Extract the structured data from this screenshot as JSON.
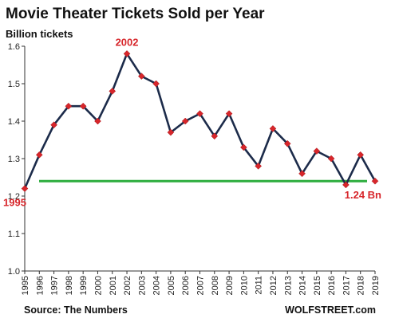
{
  "chart_data": {
    "type": "line",
    "title": "Movie Theater Tickets Sold per Year",
    "subtitle": "Billion tickets",
    "xlabel": "",
    "ylabel": "",
    "x": [
      "1995",
      "1996",
      "1997",
      "1998",
      "1999",
      "2000",
      "2001",
      "2002",
      "2003",
      "2004",
      "2005",
      "2006",
      "2007",
      "2008",
      "2009",
      "2010",
      "2011",
      "2012",
      "2013",
      "2014",
      "2015",
      "2016",
      "2017",
      "2018",
      "2019"
    ],
    "series": [
      {
        "values": [
          1.22,
          1.31,
          1.39,
          1.44,
          1.44,
          1.4,
          1.48,
          1.58,
          1.52,
          1.5,
          1.37,
          1.4,
          1.42,
          1.36,
          1.42,
          1.33,
          1.28,
          1.38,
          1.34,
          1.26,
          1.32,
          1.3,
          1.23,
          1.31,
          1.24
        ],
        "color": "#1c2b4a",
        "marker_color": "#d7262b"
      }
    ],
    "reference_line": {
      "value": 1.24,
      "color": "#2eae3e"
    },
    "ylim": [
      1.0,
      1.6
    ],
    "yticks": [
      "1.0",
      "1.1",
      "1.2",
      "1.3",
      "1.4",
      "1.5",
      "1.6"
    ],
    "grid": false,
    "legend": "none",
    "annotations": [
      {
        "text": "2002",
        "x": "2002",
        "position": "above"
      },
      {
        "text": "1995",
        "x": "1995",
        "position": "below"
      },
      {
        "text": "1.24 Bn",
        "x": "2019",
        "position": "below"
      }
    ],
    "source": "Source: The Numbers",
    "brand": "WOLFSTREET.com"
  }
}
